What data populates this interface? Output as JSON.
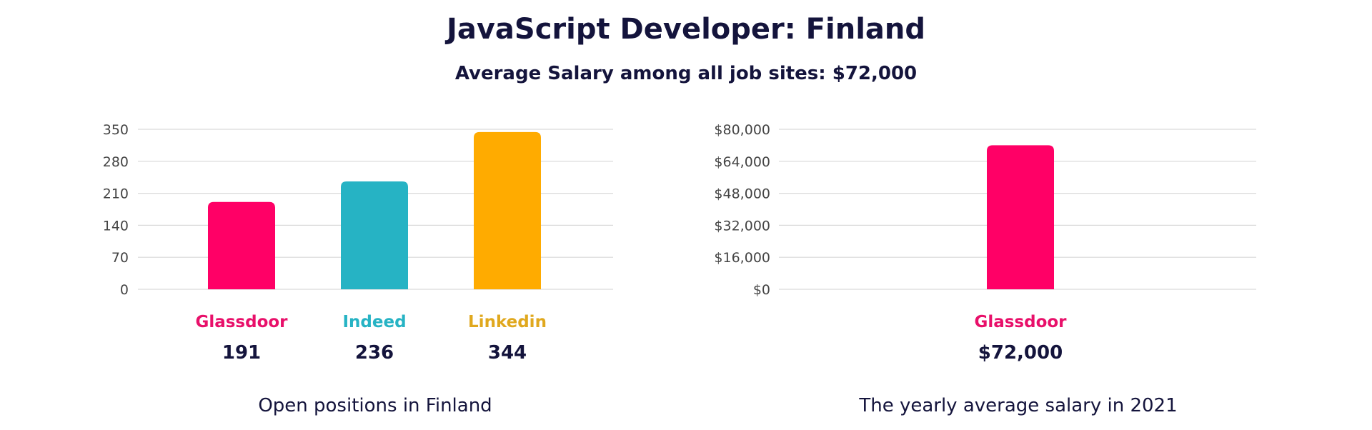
{
  "title": "JavaScript Developer: Finland",
  "subtitle": "Average Salary among all job sites: $72,000",
  "colors": {
    "text": "#14143c",
    "grid": "#d9d9d9",
    "glassdoor": "#ff0066",
    "indeed": "#26b3c4",
    "linkedin": "#ffab00",
    "linkedin_label": "#e0a81e"
  },
  "chart_data": [
    {
      "type": "bar",
      "caption": "Open positions in Finland",
      "categories": [
        "Glassdoor",
        "Indeed",
        "Linkedin"
      ],
      "values": [
        191,
        236,
        344
      ],
      "value_labels": [
        "191",
        "236",
        "344"
      ],
      "bar_colors": [
        "#ff0066",
        "#26b3c4",
        "#ffab00"
      ],
      "label_colors": [
        "#e8106a",
        "#26b3c4",
        "#e0a81e"
      ],
      "yticks": [
        0,
        70,
        140,
        210,
        280,
        350
      ],
      "ytick_labels": [
        "0",
        "70",
        "140",
        "210",
        "280",
        "350"
      ],
      "ylim": [
        0,
        350
      ],
      "grid": true,
      "xlabel": "",
      "ylabel": ""
    },
    {
      "type": "bar",
      "caption": "The yearly average salary in 2021",
      "categories": [
        "Glassdoor"
      ],
      "values": [
        72000
      ],
      "value_labels": [
        "$72,000"
      ],
      "bar_colors": [
        "#ff0066"
      ],
      "label_colors": [
        "#e8106a"
      ],
      "yticks": [
        0,
        16000,
        32000,
        48000,
        64000,
        80000
      ],
      "ytick_labels": [
        "$0",
        "$16,000",
        "$32,000",
        "$48,000",
        "$64,000",
        "$80,000"
      ],
      "ylim": [
        0,
        80000
      ],
      "grid": true,
      "xlabel": "",
      "ylabel": ""
    }
  ]
}
